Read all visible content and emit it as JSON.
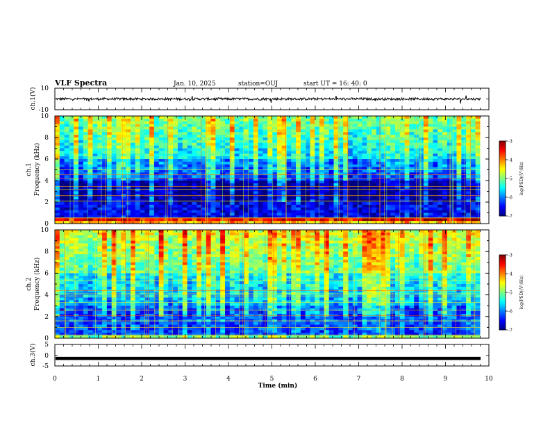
{
  "header": {
    "title": "VLF Spectra",
    "date": "Jan. 10, 2025",
    "station": "station=OUJ",
    "start": "start UT =  16: 40: 0"
  },
  "chart_data": [
    {
      "type": "line",
      "panel": "ch1-waveform",
      "ylabel": "ch.1(V)",
      "ylim": [
        -10,
        10
      ],
      "yticks": [
        "10",
        "-10"
      ],
      "baseline": 0,
      "xlim": [
        0,
        10
      ]
    },
    {
      "type": "heatmap",
      "panel": "ch1-spectrogram",
      "ylabel": "ch.1\nFrequency (kHz)",
      "ylabel_line1": "ch.1",
      "ylabel_line2": "Frequency (kHz)",
      "ylim": [
        0,
        10
      ],
      "yticks": [
        "0",
        "2",
        "4",
        "6",
        "8",
        "10"
      ],
      "xlim": [
        0,
        10
      ],
      "data_end_min": 9.8,
      "colorbar": {
        "label": "log(PSD)(V²/Hz)",
        "range": [
          -7,
          -3
        ],
        "ticks": [
          "-3",
          "-4",
          "-5",
          "-6",
          "-7"
        ]
      },
      "features": [
        {
          "freq_khz": [
            0.1,
            0.6
          ],
          "level": -3.5,
          "desc": "strong low band"
        },
        {
          "freq_khz": [
            0.6,
            2.0
          ],
          "level": -6.6
        },
        {
          "freq_khz": [
            2.0,
            3.9
          ],
          "level": -6.9
        },
        {
          "freq_khz": [
            3.9,
            6.0
          ],
          "level": -6.2
        },
        {
          "freq_khz": [
            6.0,
            10.0
          ],
          "level": -5.2
        }
      ]
    },
    {
      "type": "heatmap",
      "panel": "ch2-spectrogram",
      "ylabel": "ch.2\nFrequency (kHz)",
      "ylabel_line1": "ch.2",
      "ylabel_line2": "Frequency (kHz)",
      "ylim": [
        0,
        10
      ],
      "yticks": [
        "0",
        "2",
        "4",
        "6",
        "8",
        "10"
      ],
      "xlim": [
        0,
        10
      ],
      "data_end_min": 9.8,
      "colorbar": {
        "label": "log(PSD)(V²/Hz)",
        "range": [
          -7,
          -3
        ],
        "ticks": [
          "-3",
          "-4",
          "-5",
          "-6",
          "-7"
        ]
      },
      "features": [
        {
          "freq_khz": [
            0.0,
            3.0
          ],
          "level": -6.2
        },
        {
          "freq_khz": [
            3.0,
            6.0
          ],
          "level": -5.6
        },
        {
          "freq_khz": [
            6.0,
            10.0
          ],
          "level": -4.7
        }
      ]
    },
    {
      "type": "line",
      "panel": "ch3-waveform",
      "ylabel": "ch.3(V)",
      "ylim": [
        -5,
        5
      ],
      "yticks": [
        "5",
        "0",
        "-5"
      ],
      "baseline": -1.5,
      "xlim": [
        0,
        10
      ],
      "xlabel": "Time (min)",
      "xticks": [
        "0",
        "1",
        "2",
        "3",
        "4",
        "5",
        "6",
        "7",
        "8",
        "9",
        "10"
      ]
    }
  ]
}
